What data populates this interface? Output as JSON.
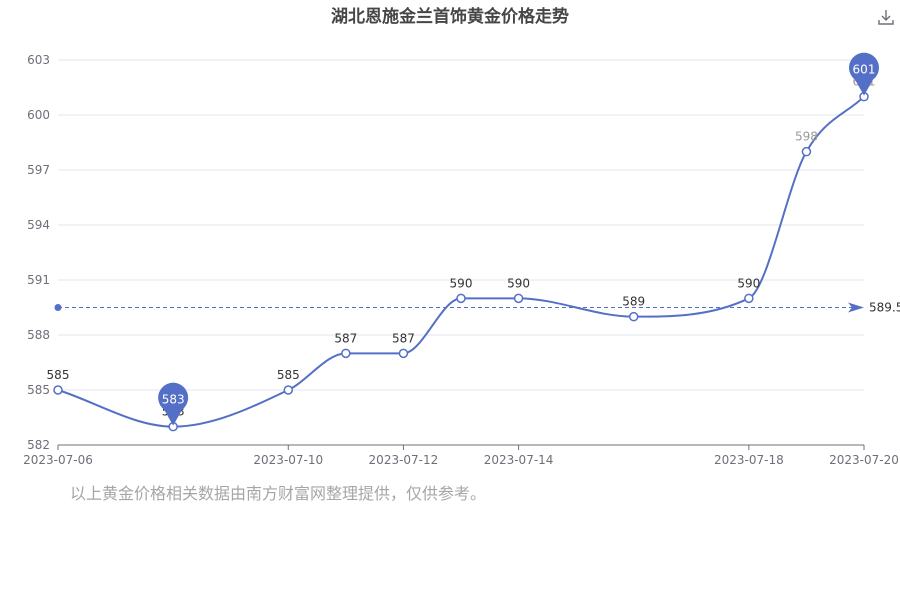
{
  "title": "湖北恩施金兰首饰黄金价格走势",
  "footnote": "以上黄金价格相关数据由南方财富网整理提供，仅供参考。",
  "colors": {
    "series": "#5470c6",
    "grid": "#e0e6f1",
    "axis": "#6e7079",
    "label": "#333333",
    "faded_label": "#999999",
    "footnote": "#a6a6a6",
    "title": "#464646"
  },
  "icons": {
    "download": "download-icon"
  },
  "chart_data": {
    "type": "line",
    "title": "湖北恩施金兰首饰黄金价格走势",
    "x_ticks": [
      "2023-07-06",
      "2023-07-10",
      "2023-07-12",
      "2023-07-14",
      "2023-07-18",
      "2023-07-20"
    ],
    "y_ticks": [
      582,
      585,
      588,
      591,
      594,
      597,
      600,
      603
    ],
    "ylim": [
      582,
      603
    ],
    "smooth": true,
    "grid": "horizontal",
    "points": [
      {
        "x": "2023-07-06",
        "y": 585,
        "label": "585"
      },
      {
        "x": "2023-07-08",
        "y": 583,
        "label": "583"
      },
      {
        "x": "2023-07-10",
        "y": 585,
        "label": "585"
      },
      {
        "x": "2023-07-11",
        "y": 587,
        "label": "587"
      },
      {
        "x": "2023-07-12",
        "y": 587,
        "label": "587"
      },
      {
        "x": "2023-07-13",
        "y": 590,
        "label": "590"
      },
      {
        "x": "2023-07-14",
        "y": 590,
        "label": "590"
      },
      {
        "x": "2023-07-16",
        "y": 589,
        "label": "589"
      },
      {
        "x": "2023-07-18",
        "y": 590,
        "label": "590"
      },
      {
        "x": "2023-07-19",
        "y": 598,
        "label": "598"
      },
      {
        "x": "2023-07-20",
        "y": 601,
        "label": "601"
      }
    ],
    "mark_points": [
      {
        "type": "min",
        "x": "2023-07-08",
        "value": 583,
        "label": "583"
      },
      {
        "type": "max",
        "x": "2023-07-20",
        "value": 601,
        "label": "601"
      }
    ],
    "mark_line": {
      "type": "average",
      "value": 589.5,
      "label": "589.5"
    }
  }
}
